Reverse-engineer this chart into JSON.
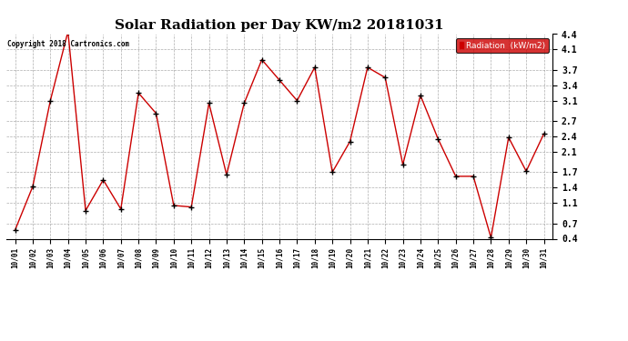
{
  "title": "Solar Radiation per Day KW/m2 20181031",
  "copyright_text": "Copyright 2018 Cartronics.com",
  "legend_label": "Radiation  (kW/m2)",
  "dates": [
    "10/01",
    "10/02",
    "10/03",
    "10/04",
    "10/05",
    "10/06",
    "10/07",
    "10/08",
    "10/09",
    "10/10",
    "10/11",
    "10/12",
    "10/13",
    "10/14",
    "10/15",
    "10/16",
    "10/17",
    "10/18",
    "10/19",
    "10/20",
    "10/21",
    "10/22",
    "10/23",
    "10/24",
    "10/25",
    "10/26",
    "10/27",
    "10/28",
    "10/29",
    "10/30",
    "10/31"
  ],
  "values": [
    0.57,
    1.42,
    3.1,
    4.45,
    0.95,
    1.55,
    0.98,
    3.25,
    2.85,
    1.05,
    1.02,
    3.05,
    1.65,
    3.05,
    3.9,
    3.5,
    3.1,
    3.75,
    1.7,
    2.3,
    3.75,
    3.55,
    1.85,
    3.2,
    2.35,
    1.62,
    1.62,
    0.42,
    2.38,
    1.72,
    2.45
  ],
  "ylim": [
    0.4,
    4.4
  ],
  "yticks": [
    0.4,
    0.7,
    1.1,
    1.4,
    1.7,
    2.1,
    2.4,
    2.7,
    3.1,
    3.4,
    3.7,
    4.1,
    4.4
  ],
  "line_color": "#cc0000",
  "marker": "+",
  "marker_color": "#000000",
  "bg_color": "#ffffff",
  "grid_color": "#999999",
  "title_fontsize": 11,
  "legend_bg": "#cc0000",
  "legend_text_color": "#ffffff"
}
